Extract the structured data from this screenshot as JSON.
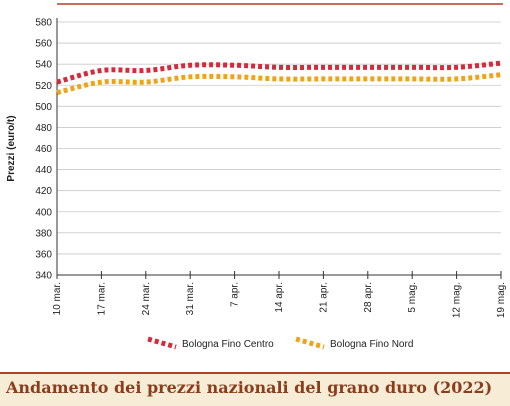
{
  "chart_data": {
    "type": "line",
    "title": "Andamento dei prezzi nazionali del grano duro (2022)",
    "ylabel": "Prezzi (euro/t)",
    "xlabel": "",
    "ylim": [
      340,
      580
    ],
    "yticks": [
      340,
      360,
      380,
      400,
      420,
      440,
      460,
      480,
      500,
      520,
      540,
      560,
      580
    ],
    "categories": [
      "10 mar.",
      "17 mar.",
      "24 mar.",
      "31 mar.",
      "7 apr.",
      "14 apr.",
      "21 apr.",
      "28 apr.",
      "5 mag.",
      "12 mag.",
      "19 mag."
    ],
    "grid": "horizontal",
    "legend_position": "bottom",
    "series": [
      {
        "name": "Bologna Fino Centro",
        "color": "#d42a3c",
        "values": [
          523,
          534,
          534,
          539,
          539,
          537,
          537,
          537,
          537,
          537,
          541
        ]
      },
      {
        "name": "Bologna Fino Nord",
        "color": "#f0a318",
        "values": [
          513,
          523,
          523,
          528,
          528,
          526,
          526,
          526,
          526,
          526,
          530
        ]
      }
    ]
  }
}
